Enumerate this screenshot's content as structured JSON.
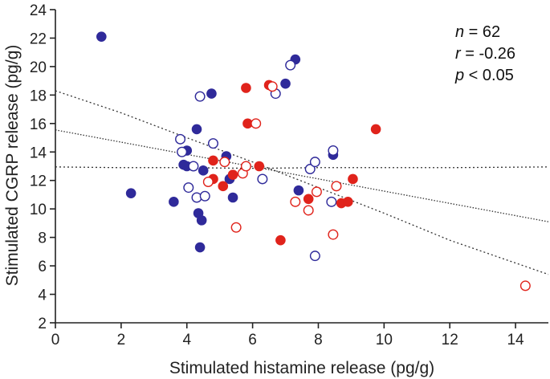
{
  "chart_data": {
    "type": "scatter",
    "title": "",
    "xlabel": "Stimulated histamine release (pg/g)",
    "ylabel": "Stimulated CGRP release (pg/g)",
    "xlim": [
      0,
      15
    ],
    "ylim": [
      2,
      24
    ],
    "xticks": [
      0,
      2,
      4,
      6,
      8,
      10,
      12,
      14
    ],
    "yticks": [
      2,
      4,
      6,
      8,
      10,
      12,
      14,
      16,
      18,
      20,
      22,
      24
    ],
    "grid": false,
    "colors": {
      "blue": "#2f2a9a",
      "red": "#e0231b",
      "line": "#333333"
    },
    "annotation": {
      "n_label": "n",
      "n_value": " = 62",
      "r_label": "r",
      "r_value": " = -0.26",
      "p_label": "p",
      "p_value": " < 0.05"
    },
    "series": [
      {
        "name": "blue-filled",
        "color": "blue",
        "filled": true,
        "points": [
          [
            1.4,
            22.1
          ],
          [
            2.3,
            11.1
          ],
          [
            3.6,
            10.5
          ],
          [
            3.9,
            13.1
          ],
          [
            4.0,
            14.1
          ],
          [
            4.0,
            13.0
          ],
          [
            4.3,
            15.6
          ],
          [
            4.35,
            9.7
          ],
          [
            4.4,
            7.3
          ],
          [
            4.45,
            9.2
          ],
          [
            4.5,
            12.7
          ],
          [
            4.75,
            18.1
          ],
          [
            5.2,
            13.7
          ],
          [
            5.3,
            12.1
          ],
          [
            5.4,
            10.8
          ],
          [
            7.0,
            18.8
          ],
          [
            7.3,
            20.5
          ],
          [
            7.4,
            11.3
          ],
          [
            8.45,
            13.8
          ]
        ]
      },
      {
        "name": "blue-open",
        "color": "blue",
        "filled": false,
        "points": [
          [
            3.8,
            14.9
          ],
          [
            3.85,
            14.0
          ],
          [
            4.05,
            11.5
          ],
          [
            4.2,
            13.0
          ],
          [
            4.3,
            10.8
          ],
          [
            4.4,
            17.9
          ],
          [
            4.55,
            10.9
          ],
          [
            4.8,
            14.6
          ],
          [
            6.7,
            18.1
          ],
          [
            6.3,
            12.1
          ],
          [
            7.15,
            20.1
          ],
          [
            7.75,
            12.8
          ],
          [
            7.9,
            13.3
          ],
          [
            7.9,
            6.7
          ],
          [
            8.4,
            10.5
          ],
          [
            8.45,
            14.1
          ]
        ]
      },
      {
        "name": "red-filled",
        "color": "red",
        "filled": true,
        "points": [
          [
            4.8,
            13.4
          ],
          [
            4.8,
            12.1
          ],
          [
            5.1,
            11.6
          ],
          [
            5.4,
            12.4
          ],
          [
            5.8,
            18.5
          ],
          [
            5.85,
            16.0
          ],
          [
            6.2,
            13.0
          ],
          [
            6.5,
            18.7
          ],
          [
            6.85,
            7.8
          ],
          [
            7.7,
            10.7
          ],
          [
            8.7,
            10.4
          ],
          [
            8.9,
            10.5
          ],
          [
            9.05,
            12.1
          ],
          [
            9.75,
            15.6
          ]
        ]
      },
      {
        "name": "red-open",
        "color": "red",
        "filled": false,
        "points": [
          [
            4.65,
            11.9
          ],
          [
            5.15,
            13.3
          ],
          [
            5.5,
            8.7
          ],
          [
            5.7,
            12.5
          ],
          [
            5.8,
            13.0
          ],
          [
            6.1,
            16.0
          ],
          [
            6.6,
            18.6
          ],
          [
            7.3,
            10.5
          ],
          [
            7.7,
            9.9
          ],
          [
            7.95,
            11.2
          ],
          [
            8.45,
            8.2
          ],
          [
            8.55,
            11.6
          ],
          [
            14.3,
            4.6
          ]
        ]
      }
    ],
    "regression": {
      "x": [
        0,
        15
      ],
      "y": [
        15.55,
        9.1
      ]
    },
    "confidence_upper": {
      "x": [
        0,
        2,
        4,
        6,
        8,
        10,
        12,
        15
      ],
      "y": [
        12.95,
        12.9,
        12.9,
        12.85,
        12.9,
        12.9,
        12.9,
        12.95
      ]
    },
    "confidence_lower": {
      "x": [
        0,
        2,
        4,
        6,
        8,
        10,
        12,
        15
      ],
      "y": [
        18.3,
        16.75,
        15.0,
        13.3,
        11.5,
        9.7,
        7.8,
        5.4
      ]
    }
  }
}
